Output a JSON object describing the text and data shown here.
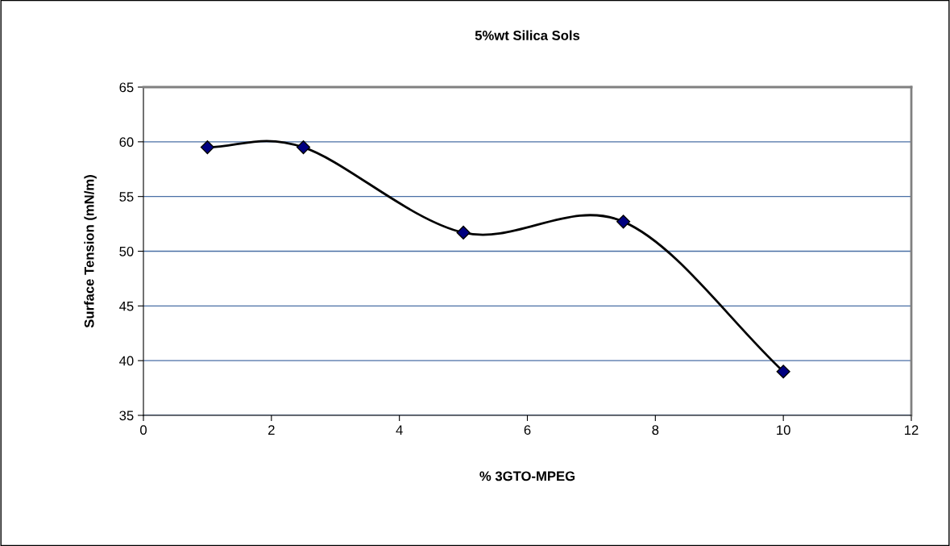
{
  "chart_data": {
    "type": "line",
    "title": "5%wt Silica Sols",
    "xlabel": "% 3GTO-MPEG",
    "ylabel": "Surface Tension (mN/m)",
    "x": [
      1,
      2.5,
      5,
      7.5,
      10
    ],
    "series": [
      {
        "color": "#000080",
        "values": [
          59.5,
          59.5,
          51.7,
          52.7,
          39.0
        ]
      }
    ],
    "xlim": [
      0,
      12
    ],
    "xticks": [
      0,
      2,
      4,
      6,
      8,
      10,
      12
    ],
    "ylim": [
      35,
      65
    ],
    "yticks": [
      35,
      40,
      45,
      50,
      55,
      60,
      65
    ],
    "grid": "y",
    "legend": false,
    "marker": "diamond",
    "line_style": "solid"
  }
}
